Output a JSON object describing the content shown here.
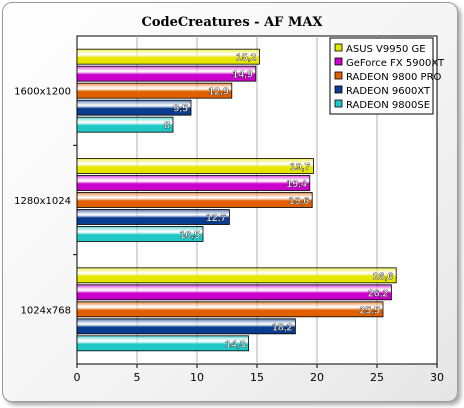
{
  "chart_data": {
    "type": "bar",
    "orientation": "horizontal",
    "title": "CodeCreatures  -  AF MAX",
    "categories": [
      "1600x1200",
      "1280x1024",
      "1024x768"
    ],
    "series": [
      {
        "name": "ASUS V9950 GE",
        "color": "#e6e600",
        "values": [
          15.2,
          19.7,
          26.6
        ],
        "labels": [
          "15,2",
          "19,7",
          "26,6"
        ]
      },
      {
        "name": "GeForce FX 5900XT",
        "color": "#cc00cc",
        "values": [
          14.9,
          19.4,
          26.2
        ],
        "labels": [
          "14,9",
          "19,4",
          "26,2"
        ]
      },
      {
        "name": "RADEON 9800 PRO",
        "color": "#e06000",
        "values": [
          12.9,
          19.6,
          25.5
        ],
        "labels": [
          "12,9",
          "19,6",
          "25,5"
        ]
      },
      {
        "name": "RADEON 9600XT",
        "color": "#0a3d8f",
        "values": [
          9.5,
          12.7,
          18.2
        ],
        "labels": [
          "9,5",
          "12,7",
          "18,2"
        ]
      },
      {
        "name": "RADEON 9800SE",
        "color": "#20c8c8",
        "values": [
          8,
          10.5,
          14.3
        ],
        "labels": [
          "8",
          "10,5",
          "14,3"
        ]
      }
    ],
    "xlim": [
      0,
      30
    ],
    "xticks": [
      "0",
      "5",
      "10",
      "15",
      "20",
      "25",
      "30"
    ],
    "grid": true,
    "legend": "top-right"
  }
}
